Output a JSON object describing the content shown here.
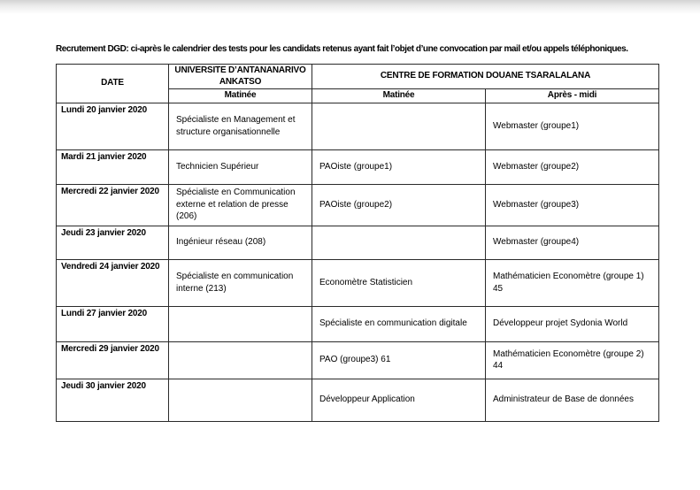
{
  "document": {
    "title": "Recrutement DGD: ci-après le calendrier des tests pour les candidats retenus ayant fait l’objet d’une convocation par mail et/ou appels téléphoniques."
  },
  "table": {
    "headers": {
      "date": "DATE",
      "universite": "UNIVERSITE D’ANTANANARIVO ANKATSO",
      "centre": "CENTRE DE FORMATION DOUANE TSARALALANA",
      "universite_session": "Matinée",
      "centre_morning": "Matinée",
      "centre_afternoon": "Après - midi"
    },
    "rows": [
      {
        "date": "Lundi 20 janvier 2020",
        "universite_matinee": "Spécialiste en Management et structure organisationnelle",
        "centre_matinee": "",
        "centre_apres_midi": "Webmaster (groupe1)"
      },
      {
        "date": "Mardi 21 janvier 2020",
        "universite_matinee": "Technicien Supérieur",
        "centre_matinee": "PAOiste (groupe1)",
        "centre_apres_midi": "Webmaster (groupe2)"
      },
      {
        "date": "Mercredi 22 janvier 2020",
        "universite_matinee": "Spécialiste en Communication externe et relation de presse (206)",
        "centre_matinee": "PAOiste (groupe2)",
        "centre_apres_midi": "Webmaster (groupe3)"
      },
      {
        "date": "Jeudi 23 janvier 2020",
        "universite_matinee": "Ingénieur réseau (208)",
        "centre_matinee": "",
        "centre_apres_midi": "Webmaster (groupe4)"
      },
      {
        "date": "Vendredi 24 janvier 2020",
        "universite_matinee": "Spécialiste en communication interne (213)",
        "centre_matinee": "Economètre Statisticien",
        "centre_apres_midi": "Mathématicien Economètre (groupe 1) 45"
      },
      {
        "date": "Lundi 27 janvier 2020",
        "universite_matinee": "",
        "centre_matinee": "Spécialiste en communication digitale",
        "centre_apres_midi": "Développeur projet Sydonia World"
      },
      {
        "date": "Mercredi 29 janvier 2020",
        "universite_matinee": "",
        "centre_matinee": "PAO (groupe3) 61",
        "centre_apres_midi": "Mathématicien Economètre (groupe 2) 44"
      },
      {
        "date": "Jeudi 30 janvier 2020",
        "universite_matinee": "",
        "centre_matinee": "Développeur Application",
        "centre_apres_midi": "Administrateur de Base de données"
      }
    ]
  }
}
